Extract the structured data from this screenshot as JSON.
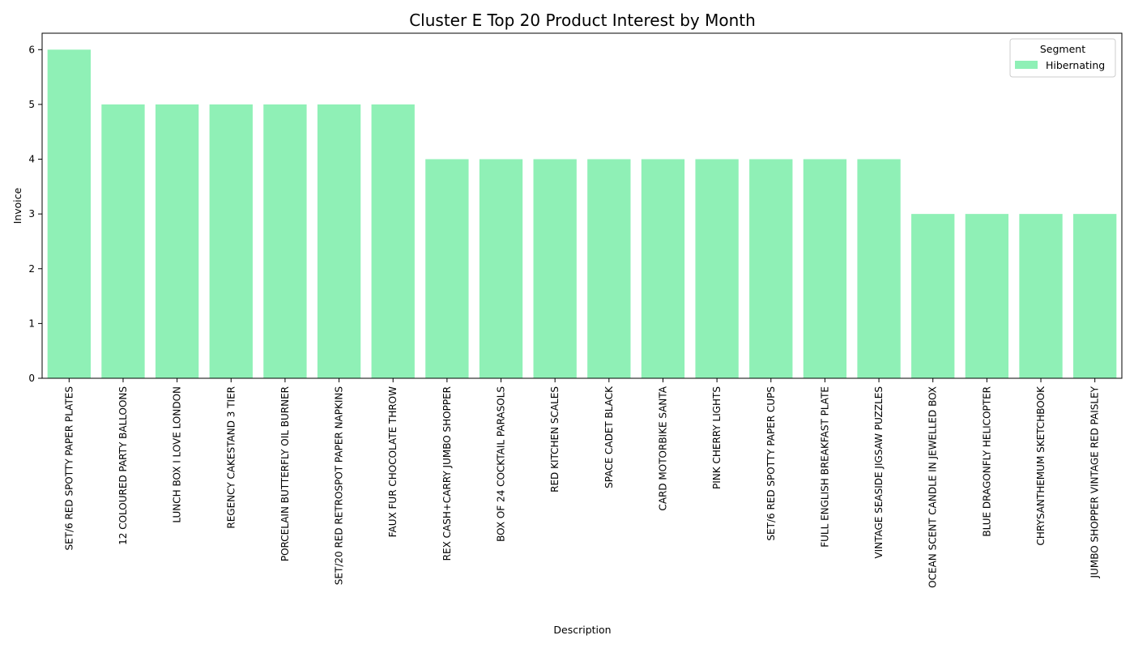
{
  "chart_data": {
    "type": "bar",
    "title": "Cluster E Top 20 Product Interest by Month",
    "xlabel": "Description",
    "ylabel": "Invoice",
    "ylim": [
      0,
      6.3
    ],
    "yticks": [
      0,
      1,
      2,
      3,
      4,
      5,
      6
    ],
    "grid": false,
    "legend": {
      "title": "Segment",
      "placement": "top-right"
    },
    "categories": [
      "SET/6 RED SPOTTY PAPER PLATES",
      "12 COLOURED PARTY BALLOONS",
      "LUNCH BOX I LOVE LONDON",
      "REGENCY CAKESTAND 3 TIER",
      "PORCELAIN BUTTERFLY OIL BURNER",
      "SET/20 RED RETROSPOT PAPER NAPKINS",
      "FAUX FUR CHOCOLATE THROW",
      "REX CASH+CARRY JUMBO SHOPPER",
      "BOX OF 24 COCKTAIL PARASOLS",
      "RED KITCHEN SCALES",
      "SPACE CADET BLACK",
      "CARD MOTORBIKE SANTA",
      "PINK CHERRY LIGHTS",
      "SET/6 RED SPOTTY PAPER CUPS",
      "FULL ENGLISH BREAKFAST PLATE",
      "VINTAGE SEASIDE JIGSAW PUZZLES",
      "OCEAN SCENT CANDLE IN JEWELLED BOX",
      "BLUE DRAGONFLY HELICOPTER",
      "CHRYSANTHEMUM SKETCHBOOK",
      "JUMBO SHOPPER VINTAGE RED PAISLEY"
    ],
    "series": [
      {
        "name": "Hibernating",
        "color": "#8ff0b6",
        "values": [
          6,
          5,
          5,
          5,
          5,
          5,
          5,
          4,
          4,
          4,
          4,
          4,
          4,
          4,
          4,
          4,
          3,
          3,
          3,
          3
        ]
      }
    ]
  }
}
